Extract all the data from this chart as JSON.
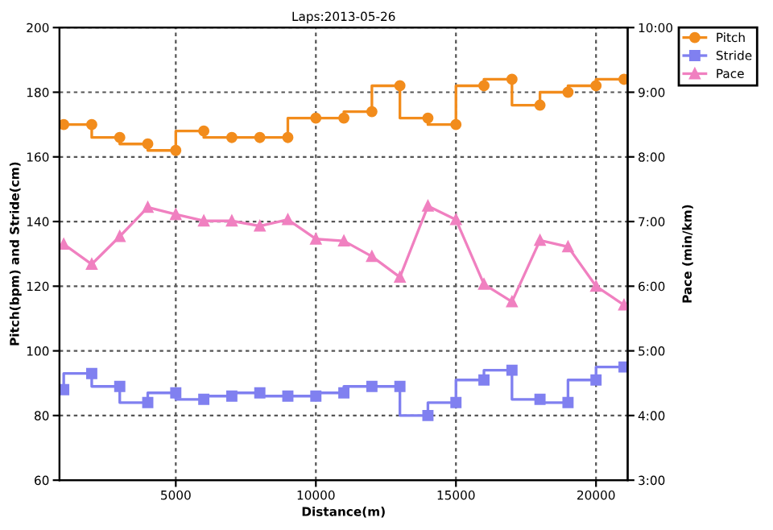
{
  "chart_data": {
    "type": "line",
    "title": "Laps:2013-05-26",
    "xlabel": "Distance(m)",
    "ylabel": "Pitch(bpm) and Stride(cm)",
    "y2label": "Pace (min/km)",
    "x": [
      1000,
      2000,
      3000,
      4000,
      5000,
      6000,
      7000,
      8000,
      9000,
      10000,
      11000,
      12000,
      13000,
      14000,
      15000,
      16000,
      17000,
      18000,
      19000,
      20000,
      21000
    ],
    "series": [
      {
        "name": "Pitch",
        "type": "step",
        "marker": "circle",
        "color": "#f28c1c",
        "values": [
          170,
          170,
          166,
          164,
          162,
          168,
          166,
          166,
          166,
          172,
          172,
          174,
          182,
          172,
          170,
          182,
          184,
          176,
          180,
          182,
          184
        ]
      },
      {
        "name": "Stride",
        "type": "step",
        "marker": "square",
        "color": "#8080f0",
        "values": [
          88,
          93,
          89,
          84,
          87,
          85,
          86,
          87,
          86,
          86,
          87,
          89,
          89,
          80,
          84,
          91,
          94,
          85,
          84,
          91,
          95
        ]
      },
      {
        "name": "Pace",
        "marker": "triangle",
        "axis": "y2",
        "color": "#f080c0",
        "values": [
          6.65,
          6.34,
          6.77,
          7.22,
          7.11,
          7.01,
          7.01,
          6.93,
          7.03,
          6.73,
          6.7,
          6.46,
          6.14,
          7.24,
          7.03,
          6.03,
          5.76,
          6.71,
          6.61,
          6.0,
          5.71
        ]
      }
    ],
    "xlim": [
      850,
      21130
    ],
    "xticks": [
      5000,
      10000,
      15000,
      20000
    ],
    "ylim": [
      60,
      200
    ],
    "yticks": [
      60,
      80,
      100,
      120,
      140,
      160,
      180,
      200
    ],
    "y2lim": [
      3,
      10
    ],
    "y2ticks": [
      {
        "value": 3,
        "label": "3:00"
      },
      {
        "value": 4,
        "label": "4:00"
      },
      {
        "value": 5,
        "label": "5:00"
      },
      {
        "value": 6,
        "label": "6:00"
      },
      {
        "value": 7,
        "label": "7:00"
      },
      {
        "value": 8,
        "label": "8:00"
      },
      {
        "value": 9,
        "label": "9:00"
      },
      {
        "value": 10,
        "label": "10:00"
      }
    ],
    "grid": true,
    "line_style": "solid",
    "legend": "top right"
  }
}
